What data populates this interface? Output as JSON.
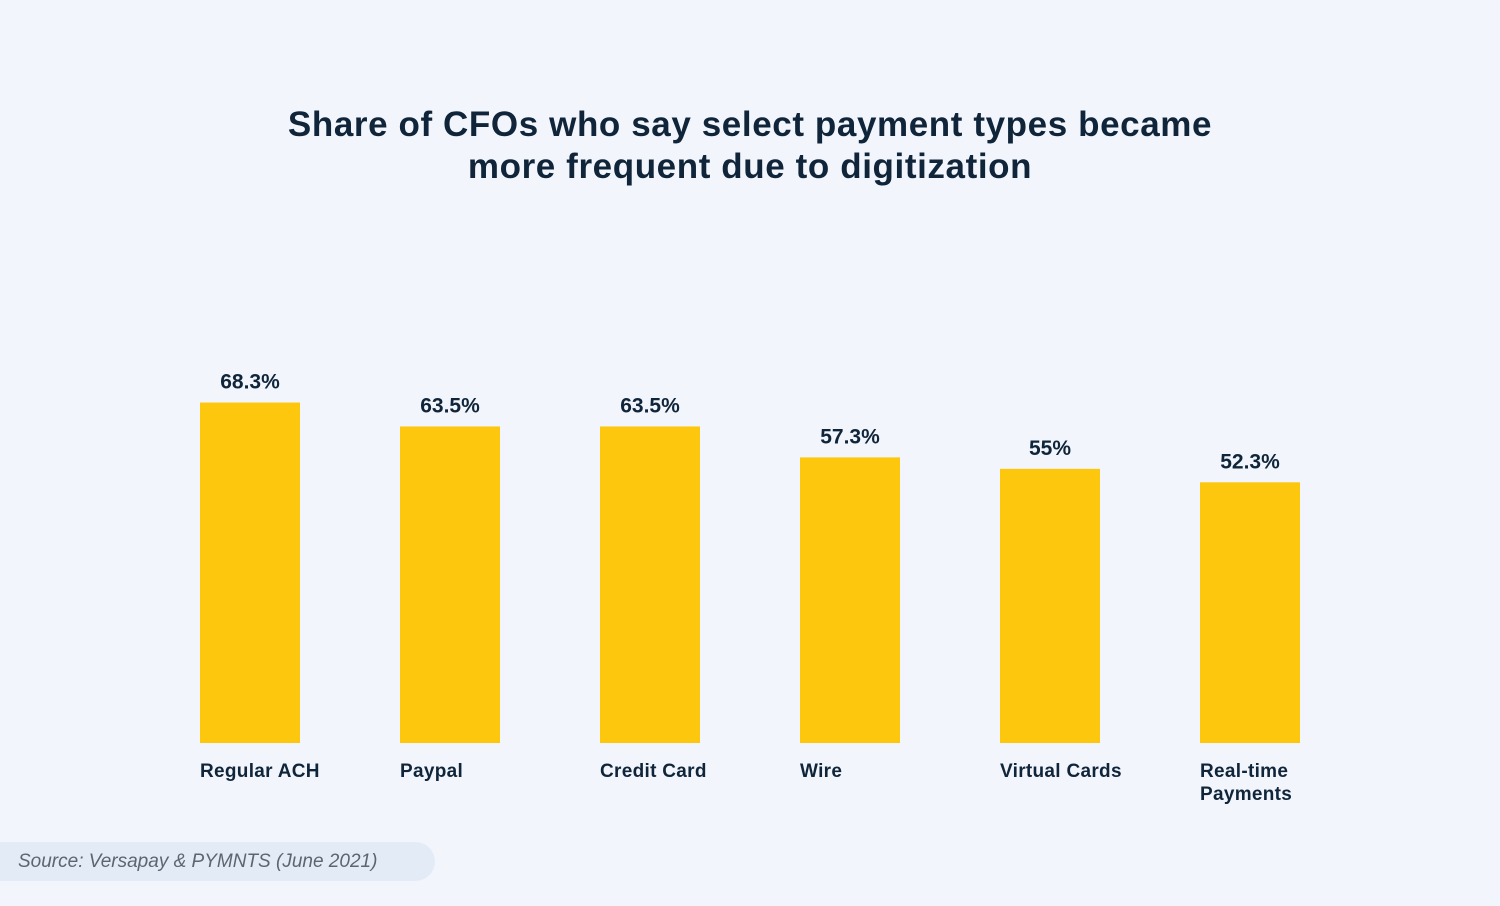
{
  "chart_data": {
    "type": "bar",
    "title_lines": [
      "Share of CFOs who say select payment types became",
      "more frequent due to digitization"
    ],
    "categories": [
      [
        "Regular ACH"
      ],
      [
        "Paypal"
      ],
      [
        "Credit Card"
      ],
      [
        "Wire"
      ],
      [
        "Virtual Cards"
      ],
      [
        "Real-time",
        "Payments"
      ]
    ],
    "values": [
      68.3,
      63.5,
      63.5,
      57.3,
      55,
      52.3
    ],
    "value_labels": [
      "68.3%",
      "63.5%",
      "63.5%",
      "57.3%",
      "55%",
      "52.3%"
    ],
    "ylim": [
      0,
      100
    ],
    "grid": false,
    "legend": "none",
    "bar_color": "#fdc70e"
  },
  "source": "Source: Versapay & PYMNTS (June 2021)"
}
